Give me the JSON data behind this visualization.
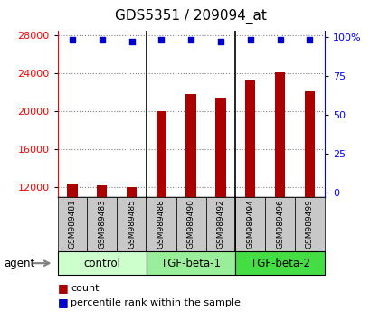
{
  "title": "GDS5351 / 209094_at",
  "samples": [
    "GSM989481",
    "GSM989483",
    "GSM989485",
    "GSM989488",
    "GSM989490",
    "GSM989492",
    "GSM989494",
    "GSM989496",
    "GSM989499"
  ],
  "counts": [
    12400,
    12200,
    12000,
    20000,
    21800,
    21400,
    23200,
    24100,
    22100
  ],
  "percentiles": [
    98,
    98,
    97,
    98,
    98,
    97,
    98,
    98,
    98
  ],
  "ylim_left": [
    11000,
    28500
  ],
  "ylim_right": [
    -3,
    104
  ],
  "yticks_left": [
    12000,
    16000,
    20000,
    24000,
    28000
  ],
  "yticks_right": [
    0,
    25,
    50,
    75,
    100
  ],
  "groups": [
    {
      "label": "control",
      "indices": [
        0,
        1,
        2
      ],
      "color": "#ccffcc"
    },
    {
      "label": "TGF-beta-1",
      "indices": [
        3,
        4,
        5
      ],
      "color": "#99ee99"
    },
    {
      "label": "TGF-beta-2",
      "indices": [
        6,
        7,
        8
      ],
      "color": "#44dd44"
    }
  ],
  "bar_color": "#aa0000",
  "dot_color": "#0000cc",
  "plot_bg": "#ffffff",
  "sample_box_color": "#c8c8c8",
  "title_fontsize": 11,
  "tick_fontsize": 8,
  "label_fontsize": 8.5,
  "sample_fontsize": 6.5
}
